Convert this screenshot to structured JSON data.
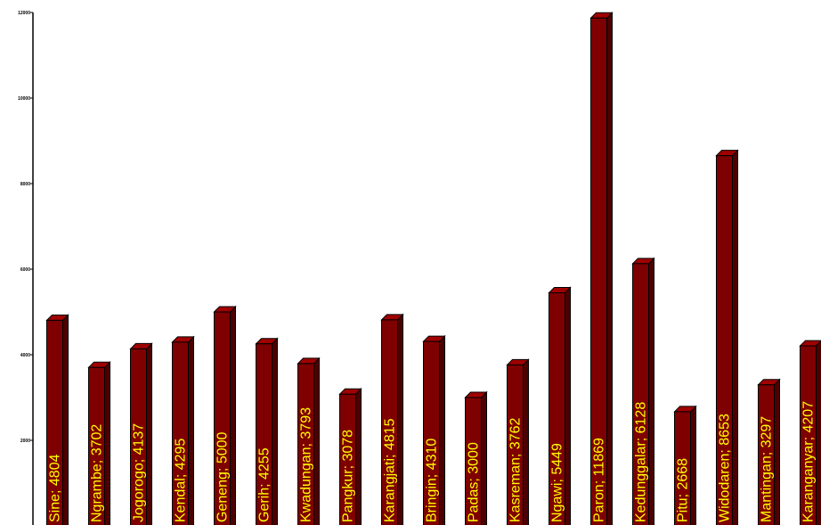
{
  "chart_data": {
    "type": "bar",
    "title": "",
    "xlabel": "",
    "ylabel": "",
    "ylim": [
      0,
      12000
    ],
    "yticks": [
      "2000",
      "4000",
      "6000",
      "8000",
      "10000",
      "12000"
    ],
    "grid": false,
    "legend": "none",
    "categories": [
      "Sine",
      "Ngrambe",
      "Jogorogo",
      "Kendal",
      "Geneng",
      "Gerih",
      "Kwadungan",
      "Pangkur",
      "Karangjati",
      "Bringin",
      "Padas",
      "Kasreman",
      "Ngawi",
      "Paron",
      "Kedunggalar",
      "Pitu",
      "Widodaren",
      "Mantingan",
      "Karanganyar"
    ],
    "values": [
      4804,
      3702,
      4137,
      4295,
      5000,
      4255,
      3793,
      3078,
      4815,
      4310,
      3000,
      3762,
      5449,
      11869,
      6128,
      2668,
      8653,
      3297,
      4207
    ],
    "data_labels": [
      "Sine; 4804",
      "Ngrambe; 3702",
      "Jogorogo; 4137",
      "Kendal; 4295",
      "Geneng; 5000",
      "Gerih; 4255",
      "Kwadungan; 3793",
      "Pangkur; 3078",
      "Karangjati; 4815",
      "Bringin; 4310",
      "Padas; 3000",
      "Kasreman; 3762",
      "Ngawi; 5449",
      "Paron; 11869",
      "Kedunggalar; 6128",
      "Pitu; 2668",
      "Widodaren; 8653",
      "Mantingan; 3297",
      "Karanganyar; 4207"
    ],
    "colors": {
      "bar_front": "#7f0000",
      "bar_side": "#4c0000",
      "bar_top": "#a00000",
      "bar_outline": "#000000",
      "label": "#ffff00",
      "axis": "#000000"
    }
  }
}
